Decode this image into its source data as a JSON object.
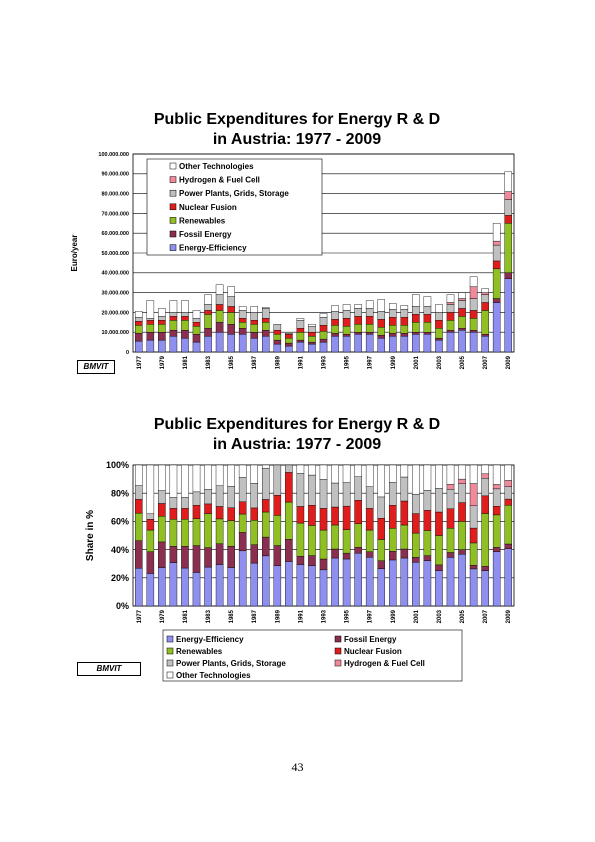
{
  "page_number": "43",
  "source_label": "BMVIT",
  "colors": {
    "Energy-Efficiency": "#8f8fef",
    "Fossil Energy": "#8a2f4f",
    "Renewables": "#8fbf23",
    "Nuclear Fusion": "#e01d1d",
    "Power Plants, Grids, Storage": "#c0c0c0",
    "Hydrogen & Fuel Cell": "#f08a9a",
    "Other Technologies": "#ffffff"
  },
  "chart_data": [
    {
      "type": "bar",
      "stacked": true,
      "title": "Public Expenditures for Energy R & D",
      "subtitle": "in Austria: 1977 - 2009",
      "ylabel": "Euro/year",
      "xlabel": "",
      "ylim": [
        0,
        100000000
      ],
      "yticks": [
        "0",
        "10.000.000",
        "20.000.000",
        "30.000.000",
        "40.000.000",
        "50.000.000",
        "60.000.000",
        "70.000.000",
        "80.000.000",
        "90.000.000",
        "100.000.000"
      ],
      "xtick_labels": [
        "1977",
        "1979",
        "1981",
        "1983",
        "1985",
        "1987",
        "1989",
        "1991",
        "1993",
        "1995",
        "1997",
        "1999",
        "2001",
        "2003",
        "2005",
        "2007",
        "2009"
      ],
      "categories": [
        "1977",
        "1978",
        "1979",
        "1980",
        "1981",
        "1982",
        "1983",
        "1984",
        "1985",
        "1986",
        "1987",
        "1988",
        "1989",
        "1990",
        "1991",
        "1992",
        "1993",
        "1994",
        "1995",
        "1996",
        "1997",
        "1998",
        "1999",
        "2000",
        "2001",
        "2002",
        "2003",
        "2004",
        "2005",
        "2006",
        "2007",
        "2008",
        "2009"
      ],
      "legend_order": [
        "Other Technologies",
        "Hydrogen & Fuel Cell",
        "Power Plants, Grids, Storage",
        "Nuclear Fusion",
        "Renewables",
        "Fossil Energy",
        "Energy-Efficiency"
      ],
      "series": [
        {
          "name": "Energy-Efficiency",
          "values": [
            5.5,
            6,
            6,
            8,
            7,
            5,
            8,
            10,
            9,
            9,
            7,
            8,
            4,
            3,
            5,
            4,
            5,
            8,
            8,
            9,
            9,
            7,
            8,
            8,
            9,
            9,
            6,
            10,
            11,
            10,
            8,
            25,
            37
          ]
        },
        {
          "name": "Fossil Energy",
          "values": [
            4,
            4,
            4,
            3,
            4,
            4,
            4,
            5,
            5,
            3,
            3,
            3,
            2,
            1.5,
            1,
            1,
            1.5,
            1.5,
            1,
            1,
            1,
            1.5,
            1.5,
            1.5,
            1,
            1,
            1,
            1,
            1,
            1,
            1,
            2,
            3
          ]
        },
        {
          "name": "Renewables",
          "values": [
            4,
            4,
            4,
            5,
            5,
            4,
            7,
            6,
            6,
            3,
            4,
            4,
            3,
            2.5,
            4,
            3,
            4,
            4,
            4,
            4,
            4,
            4,
            4,
            4,
            5,
            5,
            5,
            5,
            6,
            6,
            12,
            15,
            25
          ]
        },
        {
          "name": "Nuclear Fusion",
          "values": [
            2,
            2,
            2,
            2,
            2,
            2,
            2,
            3,
            3,
            2,
            2,
            2,
            2,
            2,
            2,
            2,
            3,
            3,
            4,
            4,
            4,
            4,
            4,
            4,
            4,
            4,
            4,
            4,
            4,
            4,
            4,
            4,
            4
          ]
        },
        {
          "name": "Power Plants, Grids, Storage",
          "values": [
            2,
            1,
            2,
            2,
            2,
            2,
            3,
            5,
            5,
            4,
            4,
            5,
            3,
            0.5,
            4,
            3,
            4,
            4,
            4,
            4,
            4,
            4,
            4,
            4,
            4,
            4,
            4,
            4,
            4,
            6,
            4,
            8,
            8
          ]
        },
        {
          "name": "Hydrogen & Fuel Cell",
          "values": [
            0,
            0,
            0,
            0,
            0,
            0,
            0,
            0,
            0,
            0,
            0,
            0,
            0,
            0,
            0,
            0,
            0,
            0,
            0,
            0,
            0,
            0,
            0,
            0,
            0,
            0,
            0,
            1,
            1,
            6,
            1,
            2,
            4
          ]
        },
        {
          "name": "Other Technologies",
          "values": [
            3,
            9,
            4,
            6,
            6,
            4,
            5,
            5,
            5,
            2,
            3,
            0.5,
            0,
            0,
            1,
            1,
            2,
            3,
            3,
            2,
            4,
            6,
            3,
            2,
            6,
            5,
            4,
            4,
            3,
            5,
            2,
            9,
            10
          ]
        }
      ],
      "value_unit_multiplier": 1000000
    },
    {
      "type": "bar",
      "stacked": true,
      "percent": true,
      "title": "Public Expenditures for Energy R & D",
      "subtitle": "in Austria: 1977 - 2009",
      "ylabel": "Share in %",
      "xlabel": "",
      "ylim": [
        0,
        100
      ],
      "yticks": [
        "0%",
        "20%",
        "40%",
        "60%",
        "80%",
        "100%"
      ],
      "xtick_labels": [
        "1977",
        "1979",
        "1981",
        "1983",
        "1985",
        "1987",
        "1989",
        "1991",
        "1993",
        "1995",
        "1997",
        "1999",
        "2001",
        "2003",
        "2005",
        "2007",
        "2009"
      ],
      "legend_order": [
        "Energy-Efficiency",
        "Fossil Energy",
        "Renewables",
        "Nuclear Fusion",
        "Power Plants, Grids, Storage",
        "Hydrogen & Fuel Cell",
        "Other Technologies"
      ],
      "series_source": "shares of chart 1 series per year"
    }
  ]
}
